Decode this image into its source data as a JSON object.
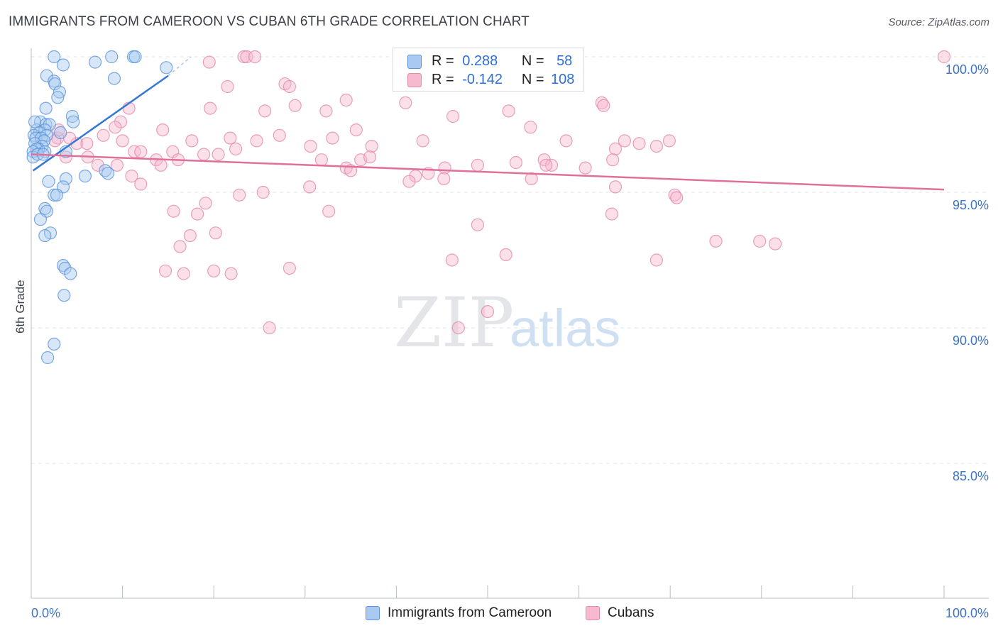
{
  "header": {
    "title": "IMMIGRANTS FROM CAMEROON VS CUBAN 6TH GRADE CORRELATION CHART",
    "source": "Source: ZipAtlas.com"
  },
  "watermark": {
    "zip": "ZIP",
    "atlas": "atlas"
  },
  "legend_stats": [
    {
      "r_label": "R =",
      "r_value": "0.288",
      "n_label": "N =",
      "n_value": "58"
    },
    {
      "r_label": "R =",
      "r_value": "-0.142",
      "n_label": "N =",
      "n_value": "108"
    }
  ],
  "bottom_legend": [
    "Immigrants from Cameroon",
    "Cubans"
  ],
  "colors": {
    "blue_fill": "#a9c9f0",
    "blue_stroke": "#5b93dd",
    "blue_line": "#3577d4",
    "pink_fill": "#f6b9cf",
    "pink_stroke": "#e48aaa",
    "pink_line": "#e0709a",
    "axis_text": "#3d74c9",
    "grid": "#dfe3e8"
  },
  "chart_data": {
    "type": "scatter",
    "title": "IMMIGRANTS FROM CAMEROON VS CUBAN 6TH GRADE CORRELATION CHART",
    "xlabel": "",
    "ylabel": "6th Grade",
    "xlim": [
      0,
      100
    ],
    "ylim": [
      80.2,
      100.6
    ],
    "x_tick_labels": [
      "0.0%",
      "100.0%"
    ],
    "y_ticks": [
      85,
      90,
      95,
      100
    ],
    "y_tick_labels": [
      "85.0%",
      "90.0%",
      "95.0%",
      "100.0%"
    ],
    "grid": true,
    "series": [
      {
        "name": "Immigrants from Cameroon",
        "color": "blue",
        "R": 0.288,
        "N": 58,
        "trend": {
          "x": [
            0.2,
            15.0
          ],
          "y": [
            95.8,
            99.3
          ],
          "dashed_to": [
            17.5,
            100.0
          ]
        },
        "points": [
          [
            2.5,
            100.0
          ],
          [
            8.8,
            100.0
          ],
          [
            11.2,
            100.0
          ],
          [
            11.4,
            100.0
          ],
          [
            7.0,
            99.8
          ],
          [
            3.5,
            99.7
          ],
          [
            14.8,
            99.6
          ],
          [
            1.7,
            99.3
          ],
          [
            9.1,
            99.2
          ],
          [
            2.5,
            99.1
          ],
          [
            2.6,
            99.0
          ],
          [
            3.1,
            98.7
          ],
          [
            2.9,
            98.5
          ],
          [
            1.6,
            98.1
          ],
          [
            4.5,
            97.8
          ],
          [
            1.0,
            97.6
          ],
          [
            4.6,
            97.6
          ],
          [
            1.6,
            97.5
          ],
          [
            2.0,
            97.5
          ],
          [
            0.6,
            97.3
          ],
          [
            1.5,
            97.3
          ],
          [
            3.2,
            97.2
          ],
          [
            0.9,
            97.2
          ],
          [
            0.3,
            97.1
          ],
          [
            1.7,
            97.1
          ],
          [
            0.5,
            97.0
          ],
          [
            1.1,
            97.0
          ],
          [
            1.4,
            96.9
          ],
          [
            0.4,
            96.8
          ],
          [
            1.2,
            96.7
          ],
          [
            0.8,
            96.6
          ],
          [
            0.6,
            96.6
          ],
          [
            0.2,
            96.5
          ],
          [
            1.5,
            96.5
          ],
          [
            0.2,
            96.3
          ],
          [
            3.8,
            96.5
          ],
          [
            8.1,
            95.8
          ],
          [
            8.4,
            95.7
          ],
          [
            5.9,
            95.6
          ],
          [
            3.8,
            95.5
          ],
          [
            1.9,
            95.4
          ],
          [
            3.5,
            95.2
          ],
          [
            2.5,
            94.9
          ],
          [
            2.8,
            94.9
          ],
          [
            1.5,
            94.4
          ],
          [
            1.7,
            94.3
          ],
          [
            1.0,
            94.0
          ],
          [
            2.1,
            93.5
          ],
          [
            1.5,
            93.4
          ],
          [
            3.5,
            92.3
          ],
          [
            3.7,
            92.2
          ],
          [
            4.3,
            92.0
          ],
          [
            3.6,
            91.2
          ],
          [
            2.5,
            89.4
          ],
          [
            1.8,
            88.9
          ],
          [
            0.7,
            96.4
          ],
          [
            1.3,
            96.4
          ],
          [
            0.4,
            97.6
          ]
        ]
      },
      {
        "name": "Cubans",
        "color": "pink",
        "R": -0.142,
        "N": 108,
        "trend": {
          "x": [
            0.0,
            100.0
          ],
          "y": [
            96.4,
            95.1
          ]
        },
        "points": [
          [
            23.3,
            100.0
          ],
          [
            23.6,
            100.0
          ],
          [
            24.5,
            100.0
          ],
          [
            100.0,
            100.0
          ],
          [
            19.5,
            99.8
          ],
          [
            27.8,
            99.0
          ],
          [
            28.3,
            98.9
          ],
          [
            21.5,
            98.9
          ],
          [
            34.5,
            98.4
          ],
          [
            28.9,
            98.2
          ],
          [
            10.7,
            98.1
          ],
          [
            19.6,
            98.1
          ],
          [
            41.0,
            98.3
          ],
          [
            62.5,
            98.3
          ],
          [
            62.7,
            98.2
          ],
          [
            32.3,
            98.0
          ],
          [
            52.3,
            98.0
          ],
          [
            25.6,
            98.0
          ],
          [
            46.2,
            97.8
          ],
          [
            9.8,
            97.6
          ],
          [
            9.2,
            97.4
          ],
          [
            54.7,
            97.4
          ],
          [
            14.4,
            97.3
          ],
          [
            35.6,
            97.3
          ],
          [
            7.9,
            97.1
          ],
          [
            27.2,
            97.1
          ],
          [
            2.9,
            97.0
          ],
          [
            21.8,
            97.0
          ],
          [
            33.0,
            97.0
          ],
          [
            17.6,
            96.9
          ],
          [
            24.7,
            96.9
          ],
          [
            42.9,
            96.9
          ],
          [
            58.6,
            96.9
          ],
          [
            65.0,
            96.9
          ],
          [
            69.9,
            96.9
          ],
          [
            5.0,
            96.8
          ],
          [
            6.1,
            96.8
          ],
          [
            66.6,
            96.8
          ],
          [
            68.5,
            96.7
          ],
          [
            30.6,
            96.7
          ],
          [
            37.3,
            96.7
          ],
          [
            64.0,
            96.6
          ],
          [
            22.4,
            96.6
          ],
          [
            20.5,
            96.4
          ],
          [
            11.3,
            96.5
          ],
          [
            12.0,
            96.5
          ],
          [
            15.5,
            96.5
          ],
          [
            18.9,
            96.4
          ],
          [
            3.8,
            96.3
          ],
          [
            6.2,
            96.3
          ],
          [
            13.7,
            96.2
          ],
          [
            16.1,
            96.2
          ],
          [
            31.8,
            96.2
          ],
          [
            36.1,
            96.2
          ],
          [
            56.2,
            96.2
          ],
          [
            63.7,
            96.2
          ],
          [
            53.1,
            96.1
          ],
          [
            57.0,
            96.0
          ],
          [
            56.4,
            96.0
          ],
          [
            9.4,
            96.0
          ],
          [
            7.3,
            96.0
          ],
          [
            14.2,
            96.0
          ],
          [
            34.5,
            95.9
          ],
          [
            45.3,
            95.9
          ],
          [
            60.7,
            95.9
          ],
          [
            35.0,
            95.8
          ],
          [
            43.5,
            95.7
          ],
          [
            11.0,
            95.6
          ],
          [
            42.1,
            95.6
          ],
          [
            45.2,
            95.5
          ],
          [
            54.8,
            95.5
          ],
          [
            41.4,
            95.4
          ],
          [
            12.0,
            95.3
          ],
          [
            64.0,
            95.2
          ],
          [
            30.5,
            95.2
          ],
          [
            25.4,
            95.0
          ],
          [
            70.5,
            94.9
          ],
          [
            70.7,
            94.8
          ],
          [
            22.8,
            94.9
          ],
          [
            19.1,
            94.6
          ],
          [
            15.6,
            94.3
          ],
          [
            32.6,
            94.3
          ],
          [
            63.6,
            94.2
          ],
          [
            18.2,
            94.2
          ],
          [
            48.9,
            93.8
          ],
          [
            20.2,
            93.5
          ],
          [
            17.4,
            93.4
          ],
          [
            16.3,
            93.0
          ],
          [
            75.0,
            93.2
          ],
          [
            79.8,
            93.2
          ],
          [
            81.5,
            93.1
          ],
          [
            52.0,
            92.7
          ],
          [
            46.1,
            92.5
          ],
          [
            68.5,
            92.5
          ],
          [
            28.3,
            92.2
          ],
          [
            14.7,
            92.1
          ],
          [
            16.7,
            92.0
          ],
          [
            20.0,
            92.1
          ],
          [
            21.9,
            92.0
          ],
          [
            50.0,
            90.6
          ],
          [
            46.8,
            90.0
          ],
          [
            26.1,
            90.0
          ],
          [
            4.2,
            97.0
          ],
          [
            2.6,
            96.9
          ],
          [
            3.0,
            97.3
          ],
          [
            10.0,
            96.9
          ],
          [
            48.9,
            96.0
          ],
          [
            37.1,
            96.3
          ]
        ]
      }
    ]
  }
}
